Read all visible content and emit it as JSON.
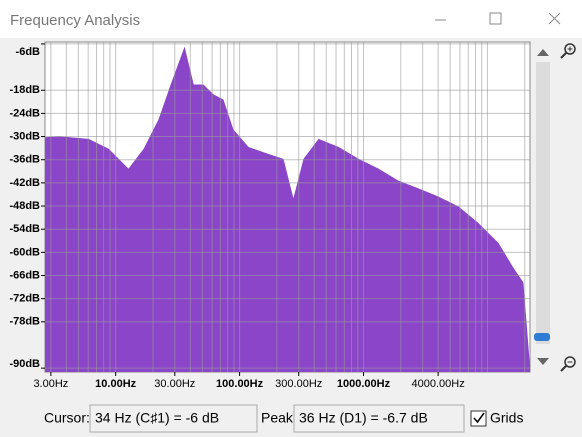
{
  "window": {
    "title": "Frequency Analysis"
  },
  "chart_data": {
    "type": "area",
    "xscale": "log",
    "grid": true,
    "color": "#8a45c8",
    "x": [
      2.7,
      3.47,
      6.06,
      8.8,
      12.7,
      16.8,
      22.2,
      27.8,
      36,
      42.6,
      51,
      61.7,
      74,
      89,
      118,
      170,
      226,
      272,
      328,
      434,
      630,
      912,
      1320,
      1910,
      2760,
      3990,
      5830,
      8460,
      12300,
      16200,
      19500,
      22050
    ],
    "values": [
      -30.2,
      -29.9,
      -30.6,
      -33.2,
      -38.3,
      -33.2,
      -25.5,
      -16.5,
      -6.7,
      -16.5,
      -16.5,
      -19.1,
      -20.4,
      -28.1,
      -32.7,
      -34.5,
      -35.8,
      -46.0,
      -35.8,
      -30.6,
      -32.7,
      -35.8,
      -38.3,
      -41.4,
      -43.4,
      -45.5,
      -48.1,
      -52.4,
      -57.6,
      -64.0,
      -67.8,
      -89.6
    ],
    "xlim": [
      2.69,
      22050
    ],
    "ylim": [
      -91,
      -5.5
    ],
    "xticks": [
      {
        "value": 3,
        "label": "3.00Hz"
      },
      {
        "value": 10,
        "label": "10.00Hz"
      },
      {
        "value": 30,
        "label": "30.00Hz"
      },
      {
        "value": 100,
        "label": "100.00Hz"
      },
      {
        "value": 300,
        "label": "300.00Hz"
      },
      {
        "value": 1000,
        "label": "1000.00Hz"
      },
      {
        "value": 4000,
        "label": "4000.00Hz"
      }
    ],
    "yticks": [
      {
        "value": -6,
        "label": "-6dB"
      },
      {
        "value": -18,
        "label": "-18dB"
      },
      {
        "value": -24,
        "label": "-24dB"
      },
      {
        "value": -30,
        "label": "-30dB"
      },
      {
        "value": -36,
        "label": "-36dB"
      },
      {
        "value": -42,
        "label": "-42dB"
      },
      {
        "value": -48,
        "label": "-48dB"
      },
      {
        "value": -54,
        "label": "-54dB"
      },
      {
        "value": -60,
        "label": "-60dB"
      },
      {
        "value": -66,
        "label": "-66dB"
      },
      {
        "value": -72,
        "label": "-72dB"
      },
      {
        "value": -78,
        "label": "-78dB"
      },
      {
        "value": -90,
        "label": "-90dB"
      }
    ],
    "xgrid": [
      3,
      4,
      5,
      6,
      7,
      8,
      9,
      10,
      20,
      30,
      40,
      50,
      60,
      70,
      80,
      90,
      100,
      200,
      300,
      400,
      500,
      600,
      700,
      800,
      900,
      1000,
      2000,
      3000,
      4000,
      5000,
      6000,
      7000,
      8000,
      9000,
      10000,
      20000
    ]
  },
  "controls": {
    "cursor_label": "Cursor:",
    "cursor_value": "34 Hz (C♯1) = -6 dB",
    "peak_label": "Peak:",
    "peak_value": "36 Hz (D1) = -6.7 dB",
    "grids_label": "Grids",
    "grids_checked": true
  }
}
